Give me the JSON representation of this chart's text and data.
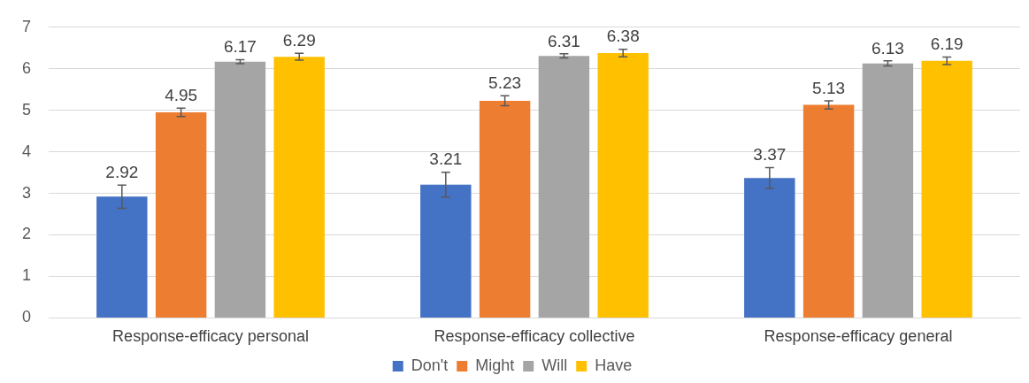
{
  "chart_data": {
    "type": "bar",
    "categories": [
      "Response-efficacy personal",
      "Response-efficacy collective",
      "Response-efficacy general"
    ],
    "series": [
      {
        "name": "Don't",
        "color": "#4472c4",
        "values": [
          2.92,
          3.21,
          3.37
        ],
        "errors": [
          0.28,
          0.3,
          0.25
        ]
      },
      {
        "name": "Might",
        "color": "#ed7d31",
        "values": [
          4.95,
          5.23,
          5.13
        ],
        "errors": [
          0.1,
          0.12,
          0.1
        ]
      },
      {
        "name": "Will",
        "color": "#a5a5a5",
        "values": [
          6.17,
          6.31,
          6.13
        ],
        "errors": [
          0.05,
          0.05,
          0.06
        ]
      },
      {
        "name": "Have",
        "color": "#ffc000",
        "values": [
          6.29,
          6.38,
          6.19
        ],
        "errors": [
          0.08,
          0.09,
          0.09
        ]
      }
    ],
    "ylim": [
      0,
      7
    ],
    "yticks": [
      0,
      1,
      2,
      3,
      4,
      5,
      6,
      7
    ],
    "grid": "y",
    "legend": "bottom",
    "data_labels": true
  }
}
